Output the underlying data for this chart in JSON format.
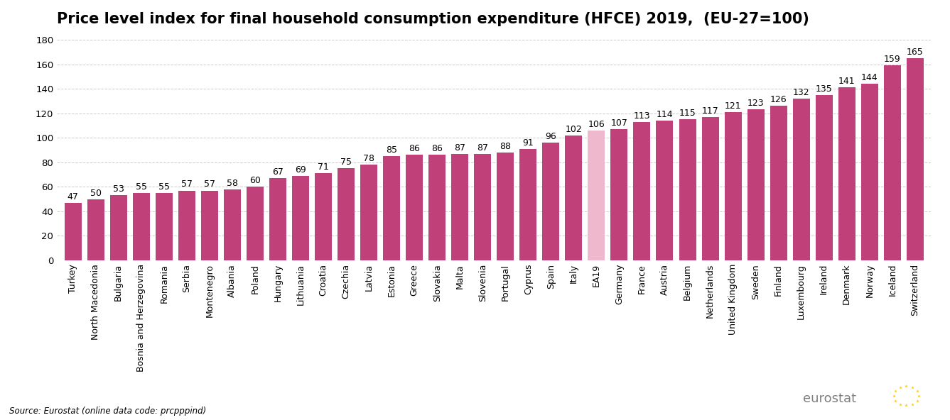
{
  "title": "Price level index for final household consumption expenditure (HFCE) 2019,  (EU-27=100)",
  "categories": [
    "Turkey",
    "North Macedonia",
    "Bulgaria",
    "Bosnia and Herzegovina",
    "Romania",
    "Serbia",
    "Montenegro",
    "Albania",
    "Poland",
    "Hungary",
    "Lithuania",
    "Croatia",
    "Czechia",
    "Latvia",
    "Estonia",
    "Greece",
    "Slovakia",
    "Malta",
    "Slovenia",
    "Portugal",
    "Cyprus",
    "Spain",
    "Italy",
    "EA19",
    "Germany",
    "France",
    "Austria",
    "Belgium",
    "Netherlands",
    "United Kingdom",
    "Sweden",
    "Finland",
    "Luxembourg",
    "Ireland",
    "Denmark",
    "Norway",
    "Iceland",
    "Switzerland"
  ],
  "values": [
    47,
    50,
    53,
    55,
    55,
    57,
    57,
    58,
    60,
    67,
    69,
    71,
    75,
    78,
    85,
    86,
    86,
    87,
    87,
    88,
    91,
    96,
    102,
    106,
    107,
    113,
    114,
    115,
    117,
    121,
    123,
    126,
    132,
    135,
    141,
    144,
    159,
    165
  ],
  "bar_color": "#c0417a",
  "ea19_color": "#f0b8cc",
  "ea19_index": 23,
  "ylim": [
    0,
    185
  ],
  "yticks": [
    0,
    20,
    40,
    60,
    80,
    100,
    120,
    140,
    160,
    180
  ],
  "source_text": "Source: Eurostat (online data code: prcpppind)",
  "background_color": "#ffffff",
  "title_fontsize": 15,
  "label_fontsize": 9,
  "tick_fontsize": 9.5,
  "gridcolor": "#cccccc",
  "eurostat_text": "eurostat"
}
